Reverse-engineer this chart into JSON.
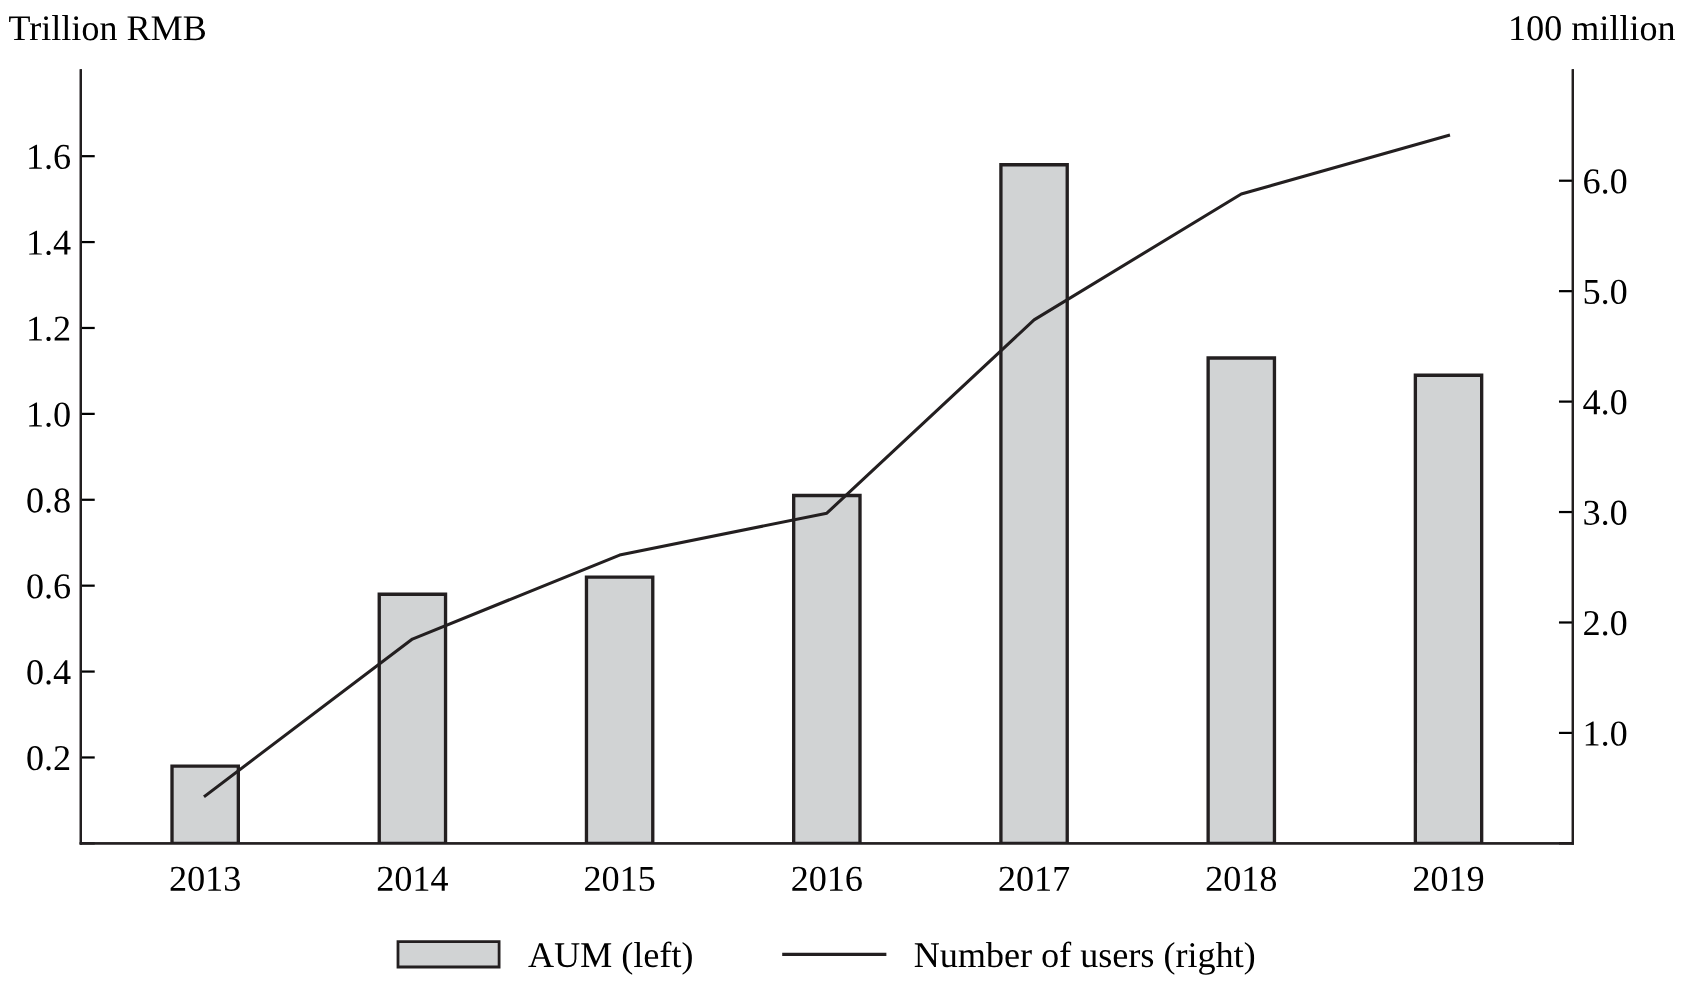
{
  "chart_data": {
    "type": "bar",
    "ylabel": "Trillion RMB",
    "y2label": "100 million",
    "categories": [
      "2013",
      "2014",
      "2015",
      "2016",
      "2017",
      "2018",
      "2019"
    ],
    "series": [
      {
        "name": "AUM (left)",
        "color": "#d1d3d4",
        "values": [
          0.18,
          0.58,
          0.62,
          0.81,
          1.58,
          1.13,
          1.09
        ]
      },
      {
        "name": "Number of users (right)",
        "type": "line",
        "axis": "y2",
        "color": "#231f20",
        "values": [
          0.43,
          1.85,
          2.61,
          2.99,
          4.74,
          5.88,
          6.41
        ]
      }
    ],
    "ylim": [
      0,
      1.8
    ],
    "yticks": [
      {
        "value": 0,
        "label": null
      },
      {
        "value": 0.2,
        "label": "0.2"
      },
      {
        "value": 0.4,
        "label": "0.4"
      },
      {
        "value": 0.6,
        "label": "0.6"
      },
      {
        "value": 0.8,
        "label": "0.8"
      },
      {
        "value": 1.0,
        "label": "1.0"
      },
      {
        "value": 1.2,
        "label": "1.2"
      },
      {
        "value": 1.4,
        "label": "1.4"
      },
      {
        "value": 1.6,
        "label": "1.6"
      }
    ],
    "y2lim": [
      0,
      7
    ],
    "y2ticks": [
      {
        "value": 0,
        "label": null
      },
      {
        "value": 1,
        "label": "1.0"
      },
      {
        "value": 2,
        "label": "2.0"
      },
      {
        "value": 3,
        "label": "3.0"
      },
      {
        "value": 4,
        "label": "4.0"
      },
      {
        "value": 5,
        "label": "5.0"
      },
      {
        "value": 6,
        "label": "6.0"
      }
    ],
    "legend": "bottom",
    "grid": false
  }
}
